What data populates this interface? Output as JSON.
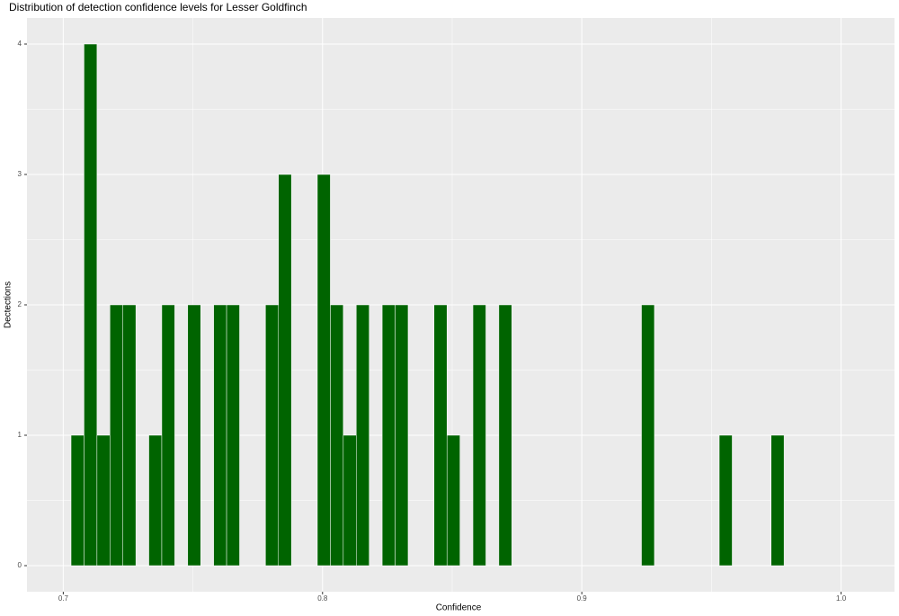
{
  "chart_data": {
    "type": "histogram",
    "title": "Distribution of detection confidence levels for Lesser Goldfinch",
    "x_label": "Confidence",
    "y_label": "Dectections",
    "bins": [
      0.703,
      0.708,
      0.713,
      0.718,
      0.723,
      0.728,
      0.733,
      0.738,
      0.743,
      0.748,
      0.753,
      0.758,
      0.763,
      0.768,
      0.773,
      0.778,
      0.783,
      0.788,
      0.793,
      0.798,
      0.803,
      0.808,
      0.813,
      0.818,
      0.823,
      0.828,
      0.833,
      0.838,
      0.843,
      0.848,
      0.853,
      0.858,
      0.863,
      0.868,
      0.873,
      0.878,
      0.883,
      0.888,
      0.893,
      0.898,
      0.903,
      0.908,
      0.913,
      0.918,
      0.923,
      0.928,
      0.933,
      0.938,
      0.943,
      0.948,
      0.953,
      0.958,
      0.963,
      0.968,
      0.973,
      0.978
    ],
    "values": [
      1,
      4,
      1,
      2,
      2,
      0,
      1,
      2,
      0,
      2,
      0,
      2,
      2,
      0,
      0,
      2,
      3,
      0,
      0,
      3,
      2,
      1,
      2,
      0,
      2,
      2,
      0,
      0,
      2,
      1,
      0,
      2,
      0,
      2,
      0,
      0,
      0,
      0,
      0,
      0,
      0,
      0,
      0,
      0,
      2,
      0,
      0,
      0,
      0,
      0,
      1,
      0,
      0,
      0,
      1
    ],
    "color": "#006400",
    "xlim": [
      0.686,
      1.0206
    ],
    "ylim": [
      -0.2,
      4.2
    ],
    "xticks": [
      0.7,
      0.8,
      0.9,
      {
        "value": 1.0,
        "label": "1.0"
      }
    ],
    "yticks": [
      0,
      1,
      2,
      3,
      4
    ],
    "grid": true
  }
}
